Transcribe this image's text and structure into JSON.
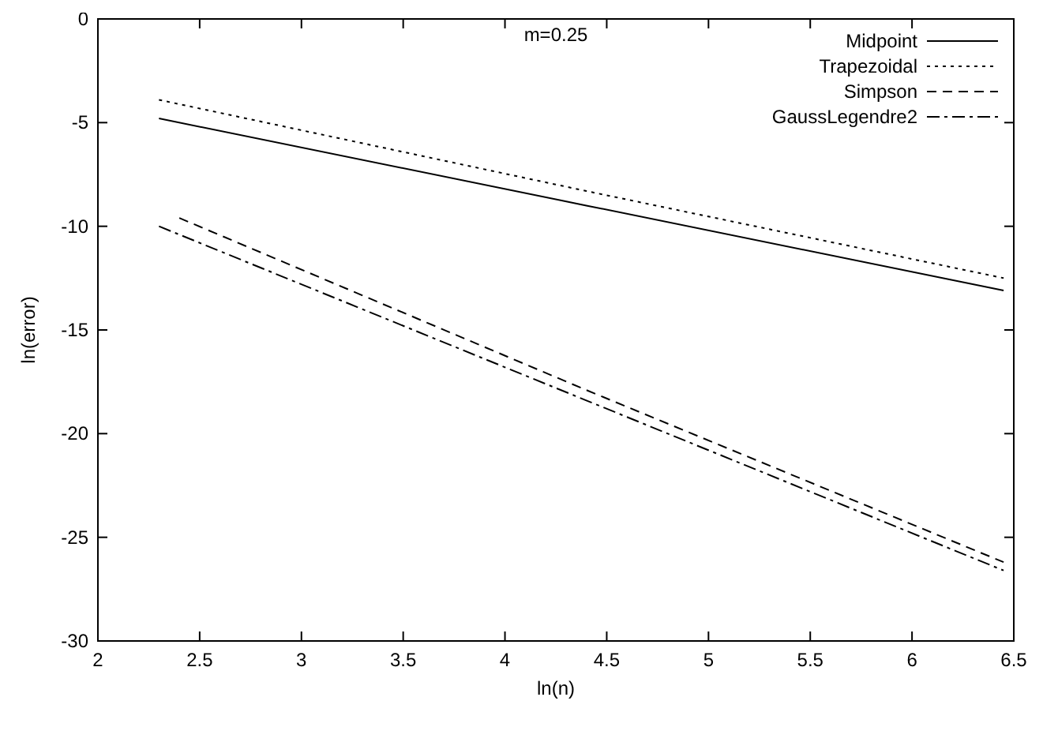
{
  "chart_data": {
    "type": "line",
    "title": "m=0.25",
    "xlabel": "ln(n)",
    "ylabel": "ln(error)",
    "xlim": [
      2,
      6.5
    ],
    "ylim": [
      -30,
      0
    ],
    "xticks": [
      2,
      2.5,
      3,
      3.5,
      4,
      4.5,
      5,
      5.5,
      6,
      6.5
    ],
    "yticks": [
      -30,
      -25,
      -20,
      -15,
      -10,
      -5,
      0
    ],
    "grid": false,
    "legend": "top right",
    "series": [
      {
        "name": "Midpoint",
        "color": "#000000",
        "line_style": "solid",
        "x": [
          2.3,
          4.4,
          6.45
        ],
        "values": [
          -4.8,
          -9.0,
          -13.1
        ]
      },
      {
        "name": "Trapezoidal",
        "color": "#000000",
        "line_style": "dotted",
        "x": [
          2.3,
          4.4,
          6.45
        ],
        "values": [
          -3.9,
          -8.3,
          -12.5
        ]
      },
      {
        "name": "Simpson",
        "color": "#000000",
        "line_style": "dashed",
        "x": [
          2.4,
          4.4,
          6.45
        ],
        "values": [
          -9.6,
          -17.9,
          -26.2
        ]
      },
      {
        "name": "GaussLegendre2",
        "color": "#000000",
        "line_style": "dashdot",
        "x": [
          2.3,
          4.4,
          6.45
        ],
        "values": [
          -10.0,
          -18.4,
          -26.6
        ]
      }
    ]
  }
}
